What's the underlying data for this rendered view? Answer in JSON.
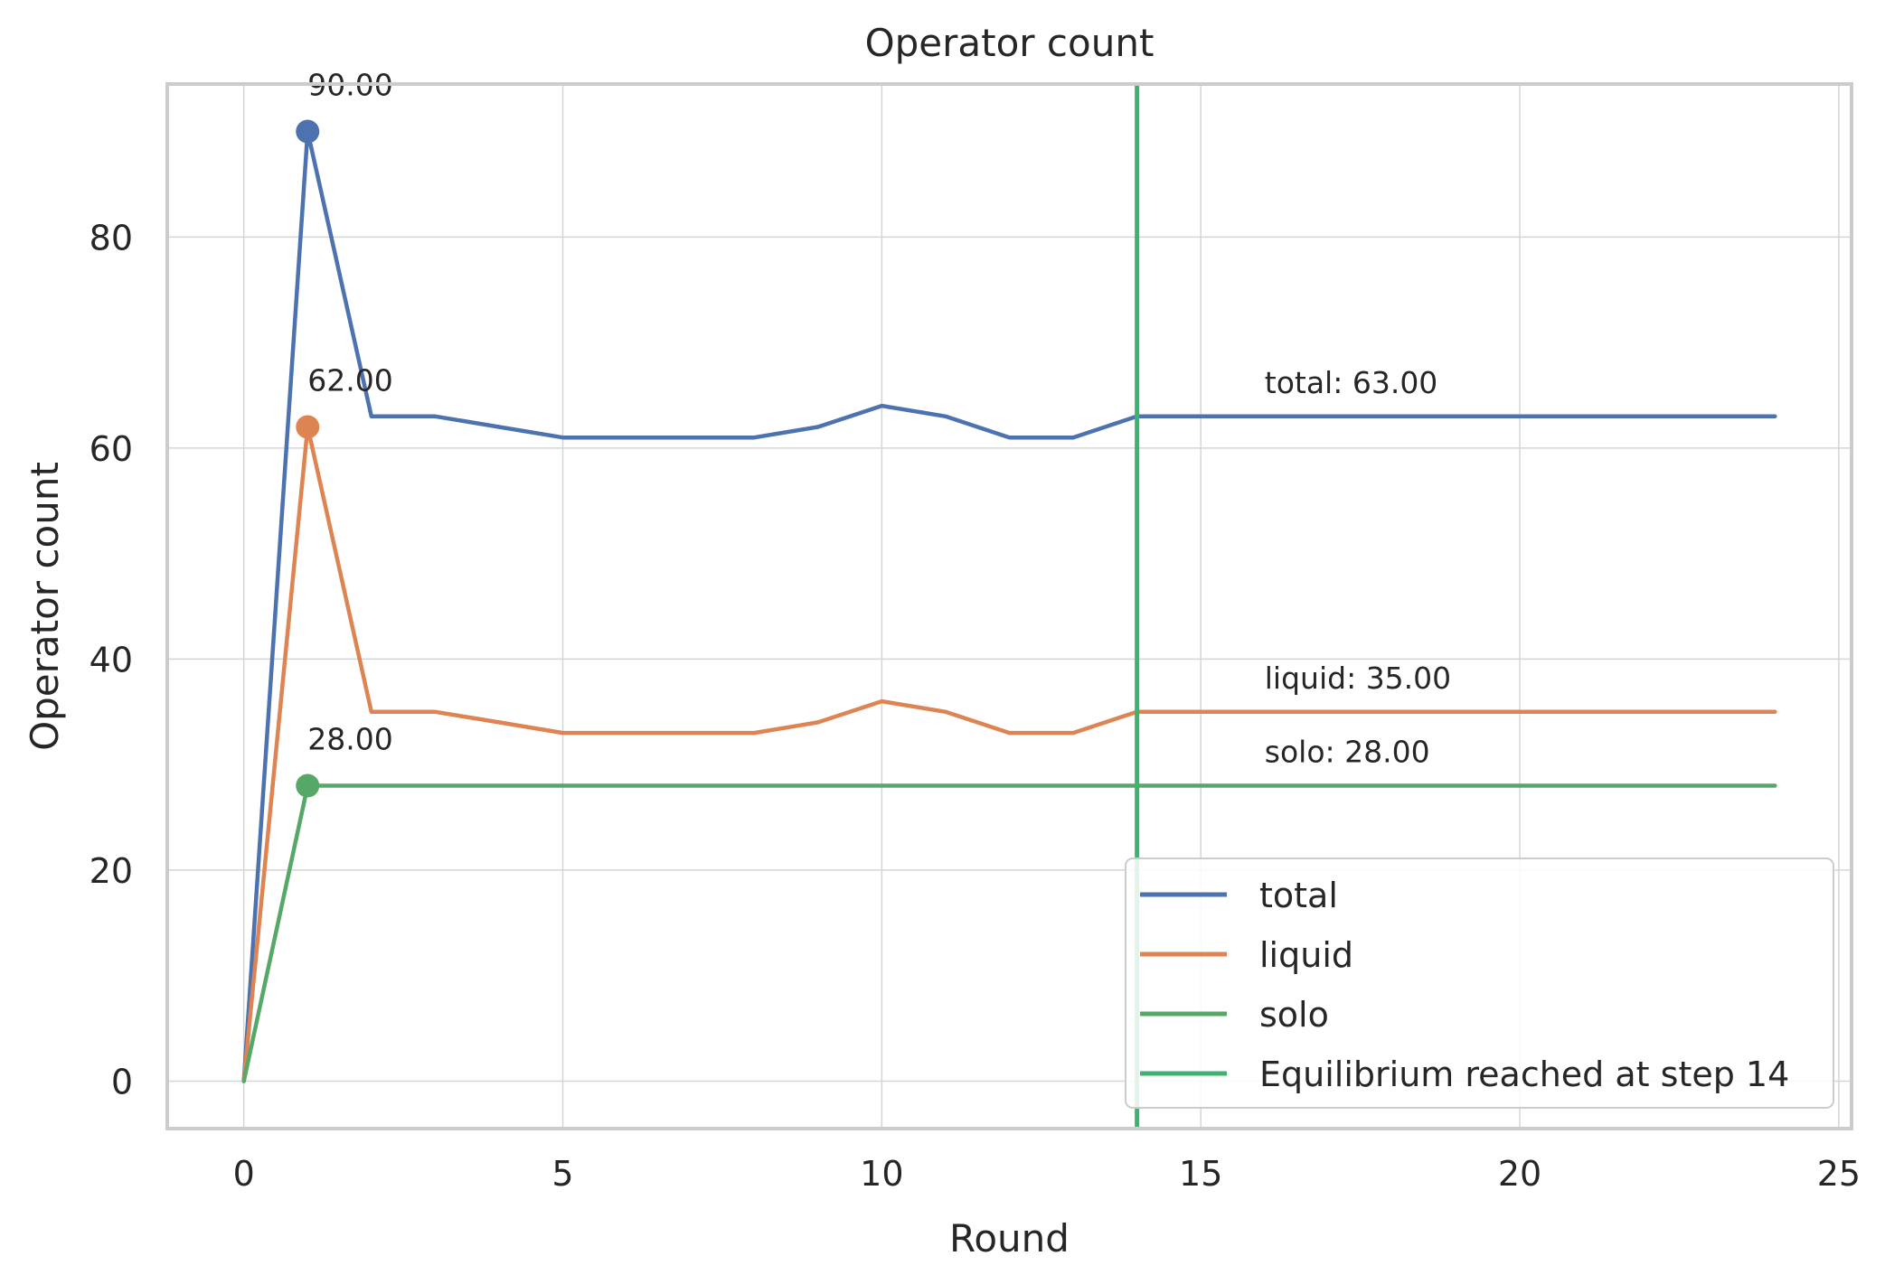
{
  "chart_data": {
    "type": "line",
    "title": "Operator count",
    "xlabel": "Round",
    "ylabel": "Operator count",
    "xlim": [
      -1.2,
      25.2
    ],
    "ylim": [
      -4.5,
      94.5
    ],
    "xticks": [
      0,
      5,
      10,
      15,
      20,
      25
    ],
    "yticks": [
      0,
      20,
      40,
      60,
      80
    ],
    "grid": true,
    "legend_position": "lower-right",
    "x": [
      0,
      1,
      2,
      3,
      4,
      5,
      6,
      7,
      8,
      9,
      10,
      11,
      12,
      13,
      14,
      15,
      16,
      17,
      18,
      19,
      20,
      21,
      22,
      23,
      24
    ],
    "series": [
      {
        "name": "total",
        "color": "#4c72b0",
        "values": [
          0,
          90,
          63,
          63,
          62,
          61,
          61,
          61,
          61,
          62,
          64,
          63,
          61,
          61,
          63,
          63,
          63,
          63,
          63,
          63,
          63,
          63,
          63,
          63,
          63
        ],
        "peak": {
          "x": 1,
          "y": 90,
          "label": "90.00"
        },
        "end_label": {
          "x": 16,
          "y": 63,
          "text": "total: 63.00"
        }
      },
      {
        "name": "liquid",
        "color": "#dd8452",
        "values": [
          0,
          62,
          35,
          35,
          34,
          33,
          33,
          33,
          33,
          34,
          36,
          35,
          33,
          33,
          35,
          35,
          35,
          35,
          35,
          35,
          35,
          35,
          35,
          35,
          35
        ],
        "peak": {
          "x": 1,
          "y": 62,
          "label": "62.00"
        },
        "end_label": {
          "x": 16,
          "y": 35,
          "text": "liquid: 35.00"
        }
      },
      {
        "name": "solo",
        "color": "#55a868",
        "values": [
          0,
          28,
          28,
          28,
          28,
          28,
          28,
          28,
          28,
          28,
          28,
          28,
          28,
          28,
          28,
          28,
          28,
          28,
          28,
          28,
          28,
          28,
          28,
          28,
          28
        ],
        "peak": {
          "x": 1,
          "y": 28,
          "label": "28.00"
        },
        "end_label": {
          "x": 16,
          "y": 28,
          "text": "solo: 28.00"
        }
      }
    ],
    "vline": {
      "x": 14,
      "name": "Equilibrium reached at step 14",
      "color": "#3cb371"
    }
  }
}
